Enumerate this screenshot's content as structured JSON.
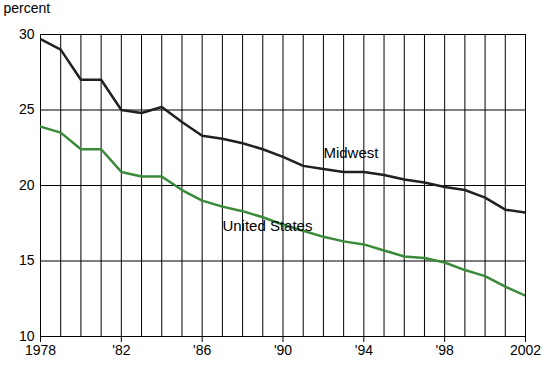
{
  "chart_data": {
    "type": "line",
    "y_label": "percent",
    "x": [
      1978,
      1979,
      1980,
      1981,
      1982,
      1983,
      1984,
      1985,
      1986,
      1987,
      1988,
      1989,
      1990,
      1991,
      1992,
      1993,
      1994,
      1995,
      1996,
      1997,
      1998,
      1999,
      2000,
      2001,
      2002
    ],
    "series": [
      {
        "name": "Midwest",
        "color": "#231f20",
        "values": [
          29.7,
          29.0,
          27.0,
          27.0,
          25.0,
          24.8,
          25.2,
          24.2,
          23.3,
          23.1,
          22.8,
          22.4,
          21.9,
          21.3,
          21.1,
          20.9,
          20.9,
          20.7,
          20.4,
          20.2,
          19.9,
          19.7,
          19.2,
          18.4,
          18.2
        ]
      },
      {
        "name": "United States",
        "color": "#3a8a3a",
        "values": [
          23.9,
          23.5,
          22.4,
          22.4,
          20.9,
          20.6,
          20.6,
          19.7,
          19.0,
          18.6,
          18.3,
          17.9,
          17.4,
          17.0,
          16.6,
          16.3,
          16.1,
          15.7,
          15.3,
          15.2,
          14.9,
          14.4,
          14.0,
          13.3,
          12.7
        ]
      }
    ],
    "xlim": [
      1978,
      2002
    ],
    "xticks": [
      1978,
      {
        "value": 1982,
        "label": "'82"
      },
      {
        "value": 1986,
        "label": "'86"
      },
      {
        "value": 1990,
        "label": "'90"
      },
      {
        "value": 1994,
        "label": "'94"
      },
      {
        "value": 1998,
        "label": "'98"
      },
      2002
    ],
    "ylim": [
      10,
      30
    ],
    "yticks": [
      10,
      15,
      20,
      25,
      30
    ],
    "grid": true
  }
}
